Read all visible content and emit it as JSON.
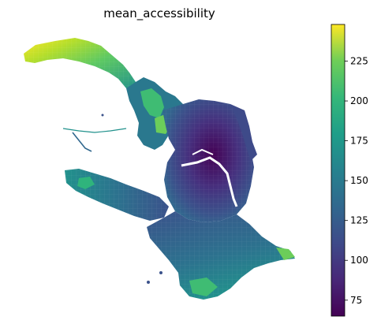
{
  "map": {
    "title": "mean_accessibility",
    "colormap": "viridis",
    "colors": {
      "low": "#440154",
      "mid_low": "#3b528b",
      "mid": "#21918c",
      "mid_high": "#5ec962",
      "high": "#fde725",
      "water": "#ffffff"
    }
  },
  "colorbar": {
    "min": 65,
    "max": 248,
    "ticks": [
      "75",
      "100",
      "125",
      "150",
      "175",
      "200",
      "225"
    ],
    "tick_values": [
      75,
      100,
      125,
      150,
      175,
      200,
      225
    ]
  }
}
